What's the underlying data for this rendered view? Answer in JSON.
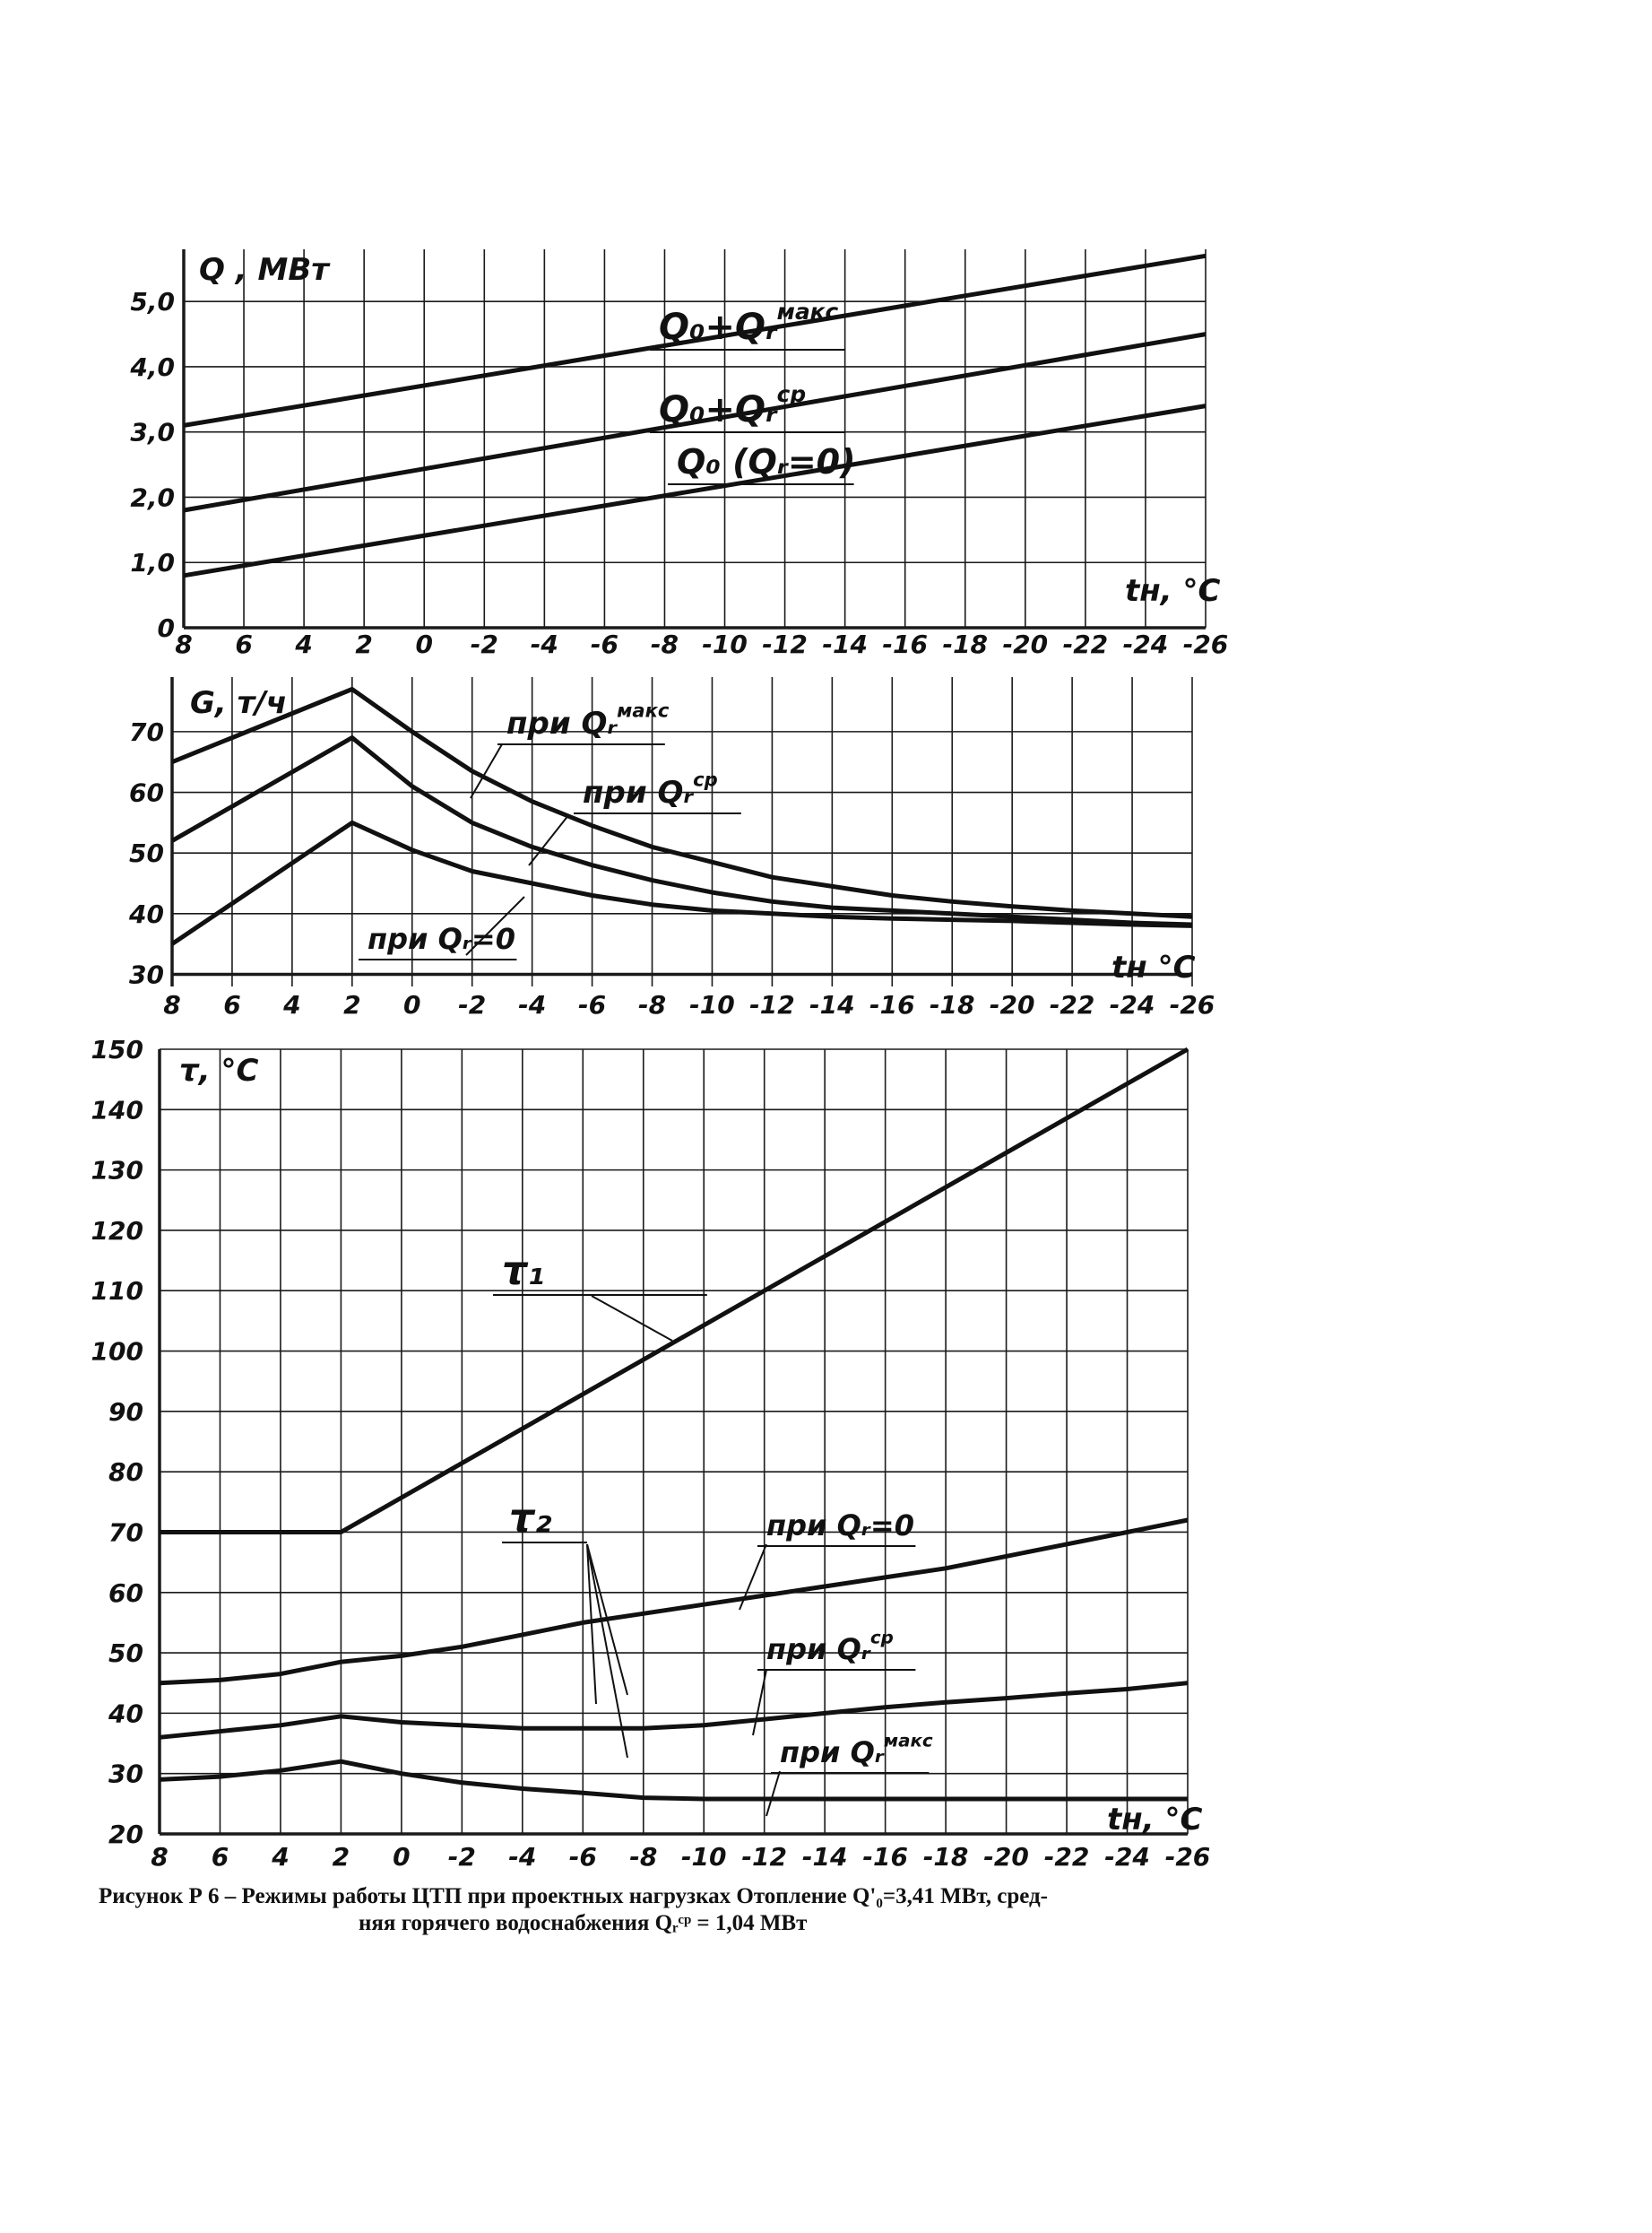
{
  "figure": {
    "caption_line1": "Рисунок Р 6 – Режимы работы ЦТП при проектных нагрузках  Отопление Q'₀=3,41 МВт, сред-",
    "caption_line2": "няя горячего водоснабжения  Qᵣᶜᵖ = 1,04 МВт"
  },
  "colors": {
    "line": "#111111",
    "grid": "#1a1a1a",
    "background": "#ffffff"
  },
  "chart_data": [
    {
      "type": "line",
      "ylabel": "Q , МВт",
      "xlabel": "tн, °C",
      "x_ticks": [
        8,
        6,
        4,
        2,
        0,
        -2,
        -4,
        -6,
        -8,
        -10,
        -12,
        -14,
        -16,
        -18,
        -20,
        -22,
        -24,
        -26
      ],
      "x_tick_labels": [
        "8",
        "6",
        "4",
        "2",
        "0",
        "-2",
        "-4",
        "-6",
        "-8",
        "-10",
        "-12",
        "-14",
        "-16",
        "-18",
        "-20",
        "-22",
        "-24",
        "-26"
      ],
      "xlim": [
        8,
        -26
      ],
      "y_ticks": [
        0,
        1.0,
        2.0,
        3.0,
        4.0,
        5.0
      ],
      "y_tick_labels": [
        "0",
        "1,0",
        "2,0",
        "3,0",
        "4,0",
        "5,0"
      ],
      "ylim": [
        0,
        5.8
      ],
      "grid": true,
      "series": [
        {
          "name": "Q₀+Qᵣᵐᵃᵏᶜ",
          "label_main": "Q₀+Qᵣ",
          "label_sup": "макс",
          "x": [
            8,
            -26
          ],
          "y": [
            3.1,
            5.7
          ]
        },
        {
          "name": "Q₀+Qᵣᶜᵖ",
          "label_main": "Q₀+Qᵣ",
          "label_sup": "ср",
          "x": [
            8,
            -26
          ],
          "y": [
            1.8,
            4.5
          ]
        },
        {
          "name": "Q₀ (Qᵣ=0)",
          "label_main": "Q₀ (Qᵣ=0)",
          "label_sup": "",
          "x": [
            8,
            -26
          ],
          "y": [
            0.8,
            3.4
          ]
        }
      ]
    },
    {
      "type": "line",
      "ylabel": "G, т/ч",
      "xlabel": "tн °C",
      "x_ticks": [
        8,
        6,
        4,
        2,
        0,
        -2,
        -4,
        -6,
        -8,
        -10,
        -12,
        -14,
        -16,
        -18,
        -20,
        -22,
        -24,
        -26
      ],
      "x_tick_labels": [
        "8",
        "6",
        "4",
        "2",
        "0",
        "-2",
        "-4",
        "-6",
        "-8",
        "-10",
        "-12",
        "-14",
        "-16",
        "-18",
        "-20",
        "-22",
        "-24",
        "-26"
      ],
      "xlim": [
        8,
        -26
      ],
      "y_ticks": [
        30,
        40,
        50,
        60,
        70
      ],
      "y_tick_labels": [
        "30",
        "40",
        "50",
        "60",
        "70"
      ],
      "ylim": [
        28,
        79
      ],
      "grid": true,
      "series": [
        {
          "name": "при Qᵣᵐᵃᵏᶜ",
          "label_main": "при Qᵣ",
          "label_sup": "макс",
          "x": [
            8,
            2,
            0,
            -2,
            -4,
            -6,
            -8,
            -10,
            -12,
            -14,
            -16,
            -18,
            -20,
            -22,
            -24,
            -26
          ],
          "y": [
            65,
            77,
            70,
            63.5,
            58.5,
            54.5,
            51,
            48.5,
            46,
            44.5,
            43,
            42,
            41.2,
            40.5,
            40,
            39.5
          ]
        },
        {
          "name": "при Qᵣᶜᵖ",
          "label_main": "при Qᵣ",
          "label_sup": "ср",
          "x": [
            8,
            2,
            0,
            -2,
            -4,
            -6,
            -8,
            -10,
            -12,
            -14,
            -16,
            -18,
            -20,
            -22,
            -24,
            -26
          ],
          "y": [
            52,
            69,
            61,
            55,
            51,
            48,
            45.5,
            43.5,
            42,
            41,
            40.5,
            40,
            39.5,
            39,
            38.5,
            38.2
          ]
        },
        {
          "name": "при Qᵣ=0",
          "label_main": "при Qᵣ=0",
          "label_sup": "",
          "x": [
            8,
            2,
            0,
            -2,
            -4,
            -6,
            -8,
            -10,
            -12,
            -14,
            -16,
            -18,
            -20,
            -22,
            -24,
            -26
          ],
          "y": [
            35,
            55,
            50.5,
            47,
            45,
            43,
            41.5,
            40.5,
            40,
            39.5,
            39.2,
            39,
            38.8,
            38.5,
            38.2,
            38
          ]
        }
      ]
    },
    {
      "type": "line",
      "ylabel": "τ, °C",
      "xlabel": "tн, °C",
      "x_ticks": [
        8,
        6,
        4,
        2,
        0,
        -2,
        -4,
        -6,
        -8,
        -10,
        -12,
        -14,
        -16,
        -18,
        -20,
        -22,
        -24,
        -26
      ],
      "x_tick_labels": [
        "8",
        "6",
        "4",
        "2",
        "0",
        "-2",
        "-4",
        "-6",
        "-8",
        "-10",
        "-12",
        "-14",
        "-16",
        "-18",
        "-20",
        "-22",
        "-24",
        "-26"
      ],
      "xlim": [
        8,
        -26
      ],
      "y_ticks": [
        20,
        30,
        40,
        50,
        60,
        70,
        80,
        90,
        100,
        110,
        120,
        130,
        140,
        150
      ],
      "y_tick_labels": [
        "20",
        "30",
        "40",
        "50",
        "60",
        "70",
        "80",
        "90",
        "100",
        "110",
        "120",
        "130",
        "140",
        "150"
      ],
      "ylim": [
        20,
        150
      ],
      "grid": true,
      "series": [
        {
          "name": "τ₁",
          "label_main": "τ₁",
          "label_sup": "",
          "x": [
            8,
            2,
            -26
          ],
          "y": [
            70,
            70,
            150
          ]
        },
        {
          "name": "τ₂ при Qᵣ=0",
          "label_main": "при Qᵣ=0",
          "label_sup": "",
          "x": [
            8,
            6,
            4,
            2,
            0,
            -2,
            -4,
            -6,
            -8,
            -10,
            -12,
            -14,
            -16,
            -18,
            -20,
            -22,
            -24,
            -26
          ],
          "y": [
            45,
            45.5,
            46.5,
            48.5,
            49.5,
            51,
            53,
            55,
            56.5,
            58,
            59.5,
            61,
            62.5,
            64,
            66,
            68,
            70,
            72
          ]
        },
        {
          "name": "τ₂ при Qᵣᶜᵖ",
          "label_main": "при Qᵣ",
          "label_sup": "ср",
          "x": [
            8,
            4,
            2,
            0,
            -2,
            -4,
            -6,
            -8,
            -10,
            -12,
            -14,
            -16,
            -18,
            -20,
            -22,
            -24,
            -26
          ],
          "y": [
            36,
            38,
            39.5,
            38.5,
            38,
            37.5,
            37.5,
            37.5,
            38,
            39,
            40,
            41,
            41.8,
            42.5,
            43.3,
            44,
            45
          ]
        },
        {
          "name": "τ₂ при Qᵣᵐᵃᵏᶜ",
          "label_main": "при Qᵣ",
          "label_sup": "макс",
          "x": [
            8,
            6,
            4,
            2,
            0,
            -2,
            -4,
            -6,
            -8,
            -10,
            -12,
            -14,
            -16,
            -18,
            -20,
            -22,
            -24,
            -26
          ],
          "y": [
            29,
            29.5,
            30.5,
            32,
            30,
            28.5,
            27.5,
            26.8,
            26,
            25.8,
            25.8,
            25.8,
            25.8,
            25.8,
            25.8,
            25.8,
            25.8,
            25.8
          ]
        }
      ],
      "annotations": [
        "τ₂"
      ]
    }
  ]
}
